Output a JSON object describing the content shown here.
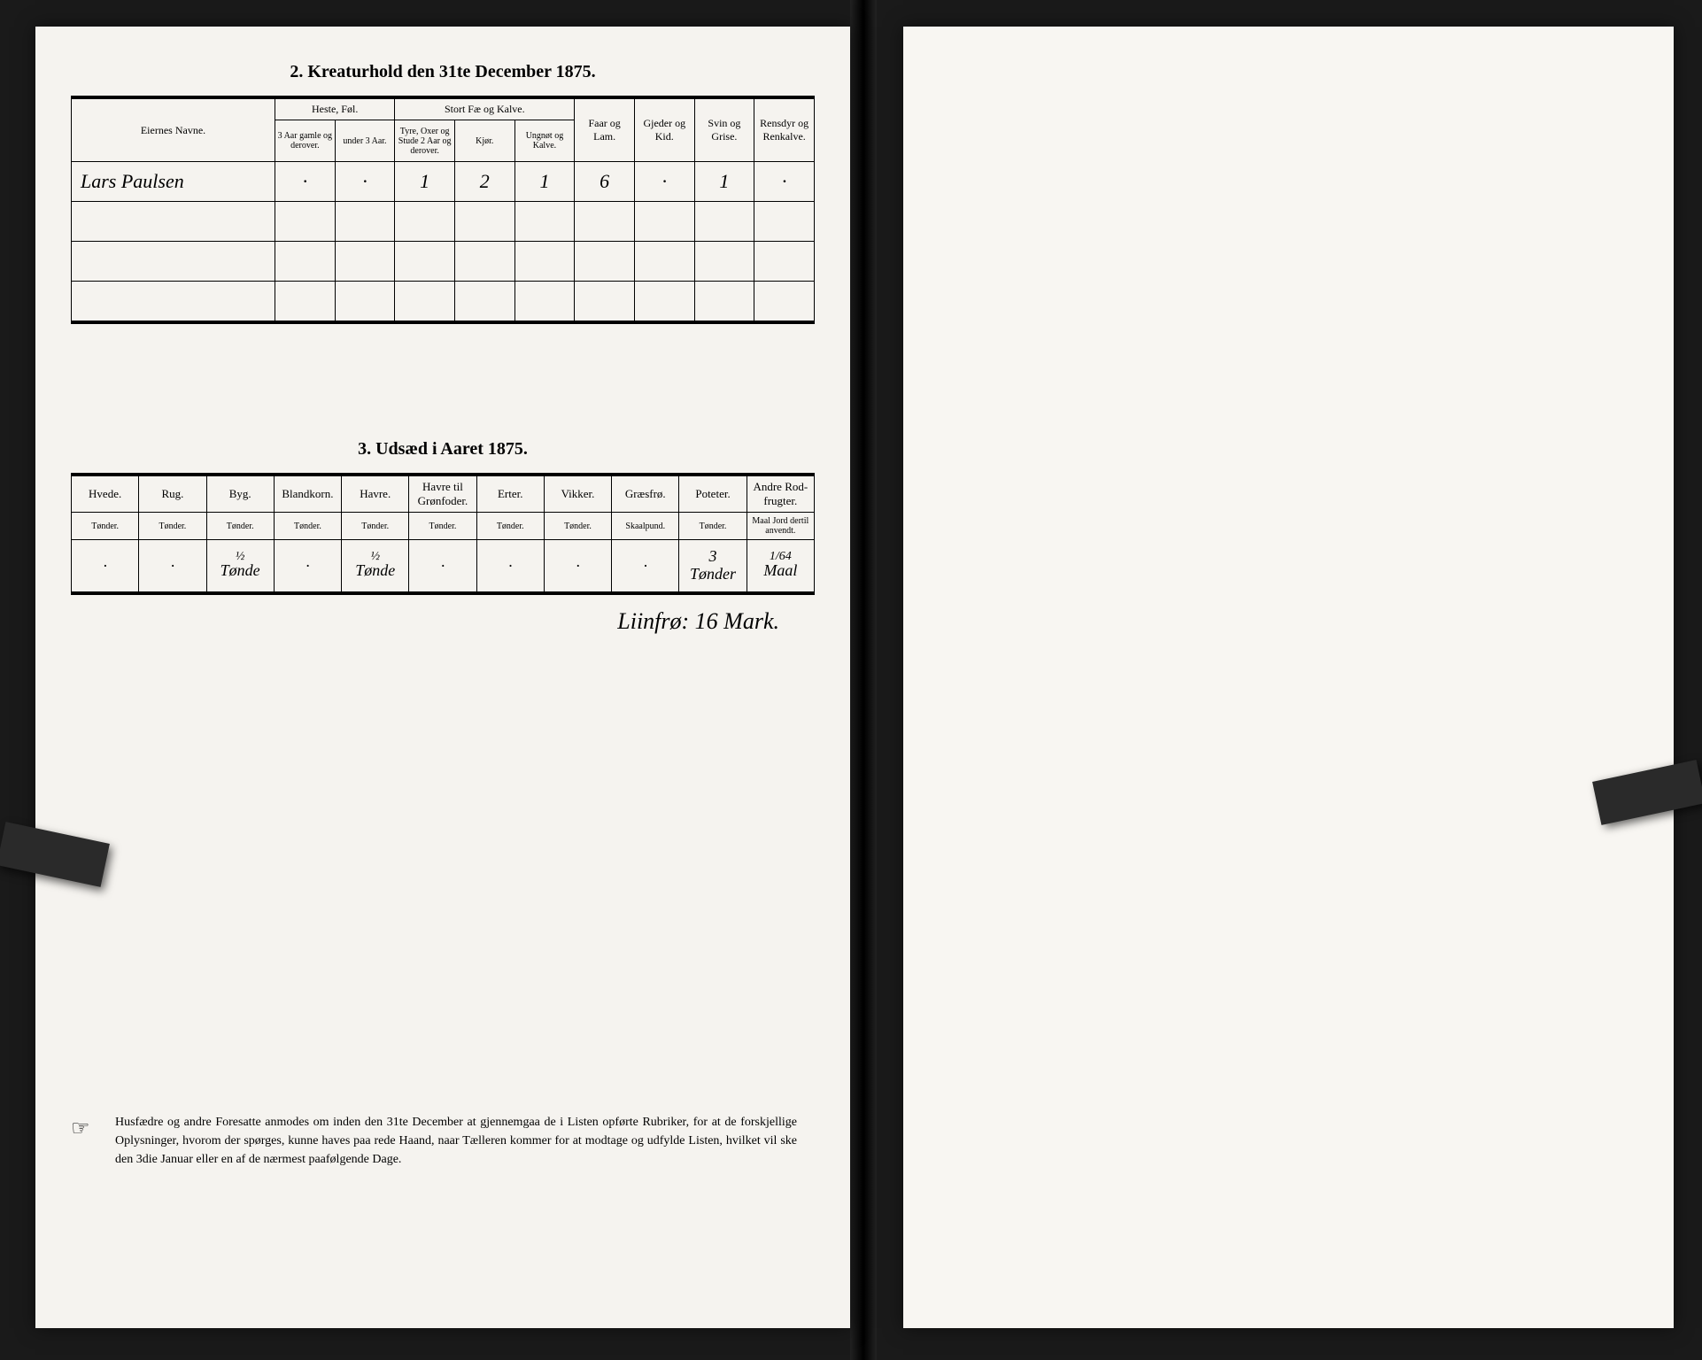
{
  "section2": {
    "title": "2.  Kreaturhold den 31te December 1875.",
    "col_name": "Eiernes Navne.",
    "group_heste": "Heste, Føl.",
    "group_stort": "Stort Fæ og Kalve.",
    "col_faar": "Faar og Lam.",
    "col_gjeder": "Gjeder og Kid.",
    "col_svin": "Svin og Grise.",
    "col_rensdyr": "Rensdyr og Renkalve.",
    "sub_heste1": "3 Aar gamle og derover.",
    "sub_heste2": "under 3 Aar.",
    "sub_stort1": "Tyre, Oxer og Stude 2 Aar og derover.",
    "sub_stort2": "Kjør.",
    "sub_stort3": "Ungnøt og Kalve.",
    "row1": {
      "name": "Lars Paulsen",
      "c1": "·",
      "c2": "·",
      "c3": "1",
      "c4": "2",
      "c5": "1",
      "c6": "6",
      "c7": "·",
      "c8": "1",
      "c9": "·"
    }
  },
  "section3": {
    "title": "3.  Udsæd i Aaret 1875.",
    "cols": {
      "hvede": "Hvede.",
      "rug": "Rug.",
      "byg": "Byg.",
      "blandkorn": "Blandkorn.",
      "havre": "Havre.",
      "havre_gron": "Havre til Grønfoder.",
      "erter": "Erter.",
      "vikker": "Vikker.",
      "graesfro": "Græsfrø.",
      "poteter": "Poteter.",
      "andre": "Andre Rod-frugter."
    },
    "unit_tonder": "Tønder.",
    "unit_skaalpund": "Skaalpund.",
    "unit_maal": "Maal Jord dertil anvendt.",
    "row": {
      "hvede": "·",
      "rug": "·",
      "byg_num": "½",
      "byg_unit": "Tønde",
      "blandkorn": "·",
      "havre_num": "½",
      "havre_unit": "Tønde",
      "havre_gron": "·",
      "erter": "·",
      "vikker": "·",
      "graesfro": "·",
      "poteter_num": "3",
      "poteter_unit": "Tønder",
      "andre_num": "1/64",
      "andre_unit": "Maal"
    },
    "annotation": "Liinfrø: 16 Mark."
  },
  "footer": {
    "text": "Husfædre og andre Foresatte anmodes om inden den 31te December at gjennemgaa de i Listen opførte Rubriker, for at de forskjellige Oplysninger, hvorom der spørges, kunne haves paa rede Haand, naar Tælleren kommer for at modtage og udfylde Listen, hvilket vil ske den 3die Januar eller en af de nærmest paafølgende Dage."
  },
  "colors": {
    "paper": "#f5f3ef",
    "ink": "#000000",
    "background": "#1a1a1a"
  }
}
